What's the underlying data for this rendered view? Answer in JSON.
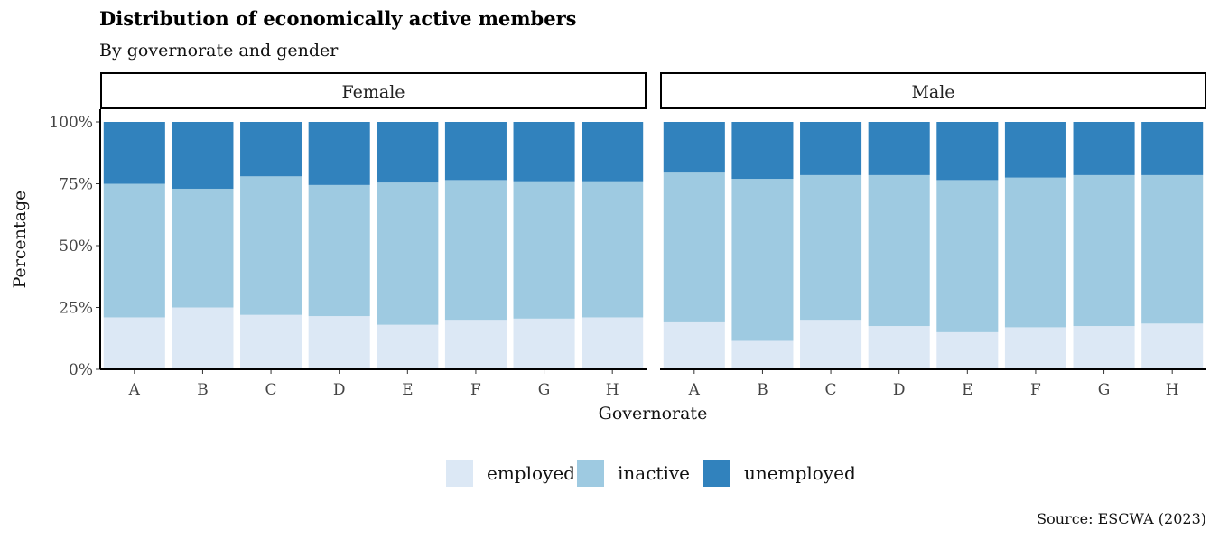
{
  "chart_data": {
    "type": "bar",
    "stacked": "percent",
    "title": "Distribution of economically active members",
    "subtitle": "By governorate and gender",
    "caption": "Source: ESCWA (2023)",
    "xlabel": "Governorate",
    "ylabel": "Percentage",
    "ylim": [
      0,
      100
    ],
    "yticks": [
      "0%",
      "25%",
      "50%",
      "75%",
      "100%"
    ],
    "categories": [
      "A",
      "B",
      "C",
      "D",
      "E",
      "F",
      "G",
      "H"
    ],
    "legend": {
      "position": "bottom",
      "entries": [
        {
          "label": "employed",
          "color": "#dce8f5"
        },
        {
          "label": "inactive",
          "color": "#9ecae1"
        },
        {
          "label": "unemployed",
          "color": "#3182bd"
        }
      ]
    },
    "panels": [
      {
        "label": "Female",
        "series": [
          {
            "name": "employed",
            "values": [
              21,
              25,
              22,
              21.5,
              18,
              20,
              20.5,
              21
            ]
          },
          {
            "name": "inactive",
            "values": [
              54,
              48,
              56,
              53,
              57.5,
              56.5,
              55.5,
              55
            ]
          },
          {
            "name": "unemployed",
            "values": [
              25,
              27,
              22,
              25.5,
              24.5,
              23.5,
              24,
              24
            ]
          }
        ]
      },
      {
        "label": "Male",
        "series": [
          {
            "name": "employed",
            "values": [
              19,
              11.5,
              20,
              17.5,
              15,
              17,
              17.5,
              18.5
            ]
          },
          {
            "name": "inactive",
            "values": [
              60.5,
              65.5,
              58.5,
              61,
              61.5,
              60.5,
              61,
              60
            ]
          },
          {
            "name": "unemployed",
            "values": [
              20.5,
              23,
              21.5,
              21.5,
              23.5,
              22.5,
              21.5,
              21.5
            ]
          }
        ]
      }
    ]
  }
}
